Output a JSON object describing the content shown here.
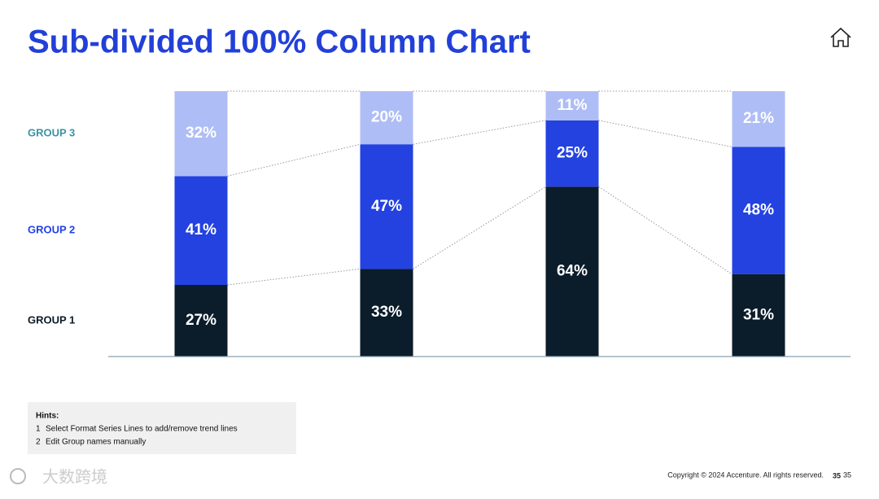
{
  "chart_data": {
    "type": "stacked_bar_100",
    "title": "Sub-divided 100% Column Chart",
    "categories": [
      null,
      null,
      null,
      null
    ],
    "ylim": [
      0,
      100
    ],
    "series": [
      {
        "name": "GROUP 1",
        "color": "#0b1c2a",
        "values": [
          27,
          33,
          64,
          31
        ],
        "value_labels": [
          "27%",
          "33%",
          "64%",
          "31%"
        ]
      },
      {
        "name": "GROUP 2",
        "color": "#2342e0",
        "values": [
          41,
          47,
          25,
          48
        ],
        "value_labels": [
          "41%",
          "47%",
          "25%",
          "48%"
        ]
      },
      {
        "name": "GROUP 3",
        "color": "#afbdf6",
        "values": [
          32,
          20,
          11,
          21
        ],
        "value_labels": [
          "32%",
          "20%",
          "11%",
          "21%"
        ]
      }
    ],
    "trend_lines": true
  },
  "hints": {
    "title": "Hints:",
    "numbers": [
      "1",
      "2"
    ],
    "items": [
      "Select Format Series Lines to add/remove trend lines",
      "Edit Group names manually"
    ]
  },
  "footer": {
    "copyright": "Copyright © 2024 Accenture. All rights reserved.",
    "page": "35",
    "page_repeat": "35",
    "watermark": "大数跨境"
  }
}
